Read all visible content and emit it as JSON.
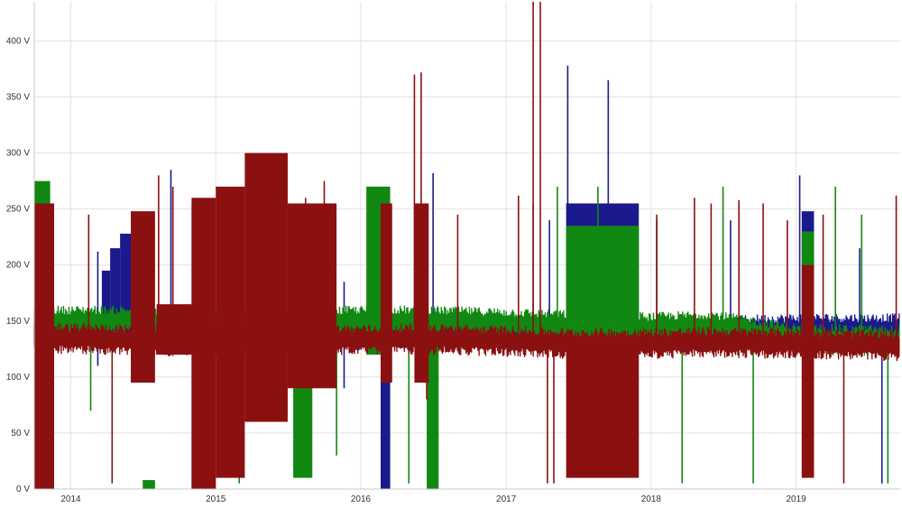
{
  "chart_data": {
    "type": "line",
    "title": "",
    "xlabel": "",
    "ylabel": "",
    "y_unit": "V",
    "ylim": [
      0,
      435
    ],
    "xlim": [
      "2013-10-01",
      "2019-09-20"
    ],
    "grid": true,
    "legend": "none",
    "y_ticks": [
      "0 V",
      "50 V",
      "100 V",
      "150 V",
      "200 V",
      "250 V",
      "300 V",
      "350 V",
      "400 V"
    ],
    "x_ticks": [
      {
        "date": "2014-01-01",
        "label": "2014"
      },
      {
        "date": "2015-01-01",
        "label": "2015"
      },
      {
        "date": "2016-01-01",
        "label": "2016"
      },
      {
        "date": "2017-01-01",
        "label": "2017"
      },
      {
        "date": "2018-01-01",
        "label": "2018"
      },
      {
        "date": "2019-01-01",
        "label": "2019"
      }
    ],
    "series": [
      {
        "color": "#1a1a8c",
        "baseline": [
          [
            "2013-10-01",
            140
          ],
          [
            "2014-02-01",
            140
          ],
          [
            "2014-05-15",
            140
          ],
          [
            "2014-07-01",
            141
          ],
          [
            "2015-01-01",
            140
          ],
          [
            "2015-07-01",
            138
          ],
          [
            "2016-01-01",
            138
          ],
          [
            "2016-06-01",
            140
          ],
          [
            "2017-01-01",
            138
          ],
          [
            "2017-06-01",
            137
          ],
          [
            "2018-01-01",
            135
          ],
          [
            "2018-06-01",
            136
          ],
          [
            "2018-09-01",
            142
          ],
          [
            "2019-01-01",
            143
          ],
          [
            "2019-09-20",
            143
          ]
        ],
        "bands": [
          {
            "start": "2013-10-01",
            "end": "2013-11-01",
            "low": 0,
            "high": 270
          },
          {
            "start": "2014-03-20",
            "end": "2014-04-10",
            "low": 150,
            "high": 195
          },
          {
            "start": "2014-04-10",
            "end": "2014-05-05",
            "low": 155,
            "high": 215
          },
          {
            "start": "2014-05-05",
            "end": "2014-06-01",
            "low": 150,
            "high": 228
          },
          {
            "start": "2016-02-20",
            "end": "2016-03-15",
            "low": 0,
            "high": 125
          },
          {
            "start": "2017-06-01",
            "end": "2017-12-01",
            "low": 130,
            "high": 255
          },
          {
            "start": "2019-01-15",
            "end": "2019-02-15",
            "low": 200,
            "high": 248
          }
        ],
        "spikes": [
          [
            "2014-03-10",
            212,
            110
          ],
          [
            "2014-09-10",
            285,
            145
          ],
          [
            "2015-08-01",
            80,
            170
          ],
          [
            "2015-11-20",
            90,
            185
          ],
          [
            "2016-07-01",
            282,
            120
          ],
          [
            "2017-04-20",
            240,
            140
          ],
          [
            "2017-06-05",
            378,
            130
          ],
          [
            "2017-09-15",
            365,
            130
          ],
          [
            "2018-07-20",
            240,
            135
          ],
          [
            "2019-01-10",
            280,
            140
          ],
          [
            "2019-06-10",
            215,
            125
          ],
          [
            "2019-08-05",
            140,
            5
          ]
        ]
      },
      {
        "color": "#118811",
        "baseline": [
          [
            "2013-10-01",
            150
          ],
          [
            "2014-06-01",
            150
          ],
          [
            "2015-01-01",
            147
          ],
          [
            "2015-07-01",
            148
          ],
          [
            "2016-01-01",
            150
          ],
          [
            "2016-06-01",
            150
          ],
          [
            "2017-01-01",
            148
          ],
          [
            "2017-06-01",
            146
          ],
          [
            "2018-01-01",
            144
          ],
          [
            "2018-06-01",
            146
          ],
          [
            "2019-01-01",
            134
          ],
          [
            "2019-09-20",
            132
          ]
        ],
        "bands": [
          {
            "start": "2013-10-01",
            "end": "2013-11-10",
            "low": 60,
            "high": 275
          },
          {
            "start": "2014-07-01",
            "end": "2014-08-01",
            "low": 0,
            "high": 8
          },
          {
            "start": "2014-11-01",
            "end": "2014-12-15",
            "low": 0,
            "high": 255
          },
          {
            "start": "2015-07-15",
            "end": "2015-09-01",
            "low": 10,
            "high": 150
          },
          {
            "start": "2016-01-15",
            "end": "2016-03-15",
            "low": 120,
            "high": 270
          },
          {
            "start": "2016-06-15",
            "end": "2016-07-15",
            "low": 0,
            "high": 150
          },
          {
            "start": "2017-06-01",
            "end": "2017-12-01",
            "low": 130,
            "high": 235
          },
          {
            "start": "2019-01-15",
            "end": "2019-02-15",
            "low": 130,
            "high": 230
          }
        ],
        "spikes": [
          [
            "2014-02-20",
            70,
            150
          ],
          [
            "2015-03-01",
            5,
            150
          ],
          [
            "2015-11-01",
            30,
            160
          ],
          [
            "2016-05-01",
            5,
            150
          ],
          [
            "2017-03-10",
            255,
            150
          ],
          [
            "2017-05-10",
            270,
            150
          ],
          [
            "2017-08-20",
            270,
            150
          ],
          [
            "2018-01-15",
            240,
            140
          ],
          [
            "2018-03-20",
            5,
            140
          ],
          [
            "2018-07-01",
            270,
            140
          ],
          [
            "2018-09-15",
            5,
            140
          ],
          [
            "2019-04-10",
            270,
            130
          ],
          [
            "2019-06-15",
            245,
            130
          ],
          [
            "2019-08-20",
            5,
            130
          ]
        ]
      },
      {
        "color": "#8b1010",
        "baseline": [
          [
            "2013-10-01",
            135
          ],
          [
            "2014-06-01",
            133
          ],
          [
            "2015-01-01",
            132
          ],
          [
            "2015-07-01",
            134
          ],
          [
            "2016-01-01",
            133
          ],
          [
            "2016-06-01",
            134
          ],
          [
            "2017-01-01",
            132
          ],
          [
            "2017-06-01",
            130
          ],
          [
            "2018-01-01",
            130
          ],
          [
            "2018-06-01",
            131
          ],
          [
            "2019-01-01",
            130
          ],
          [
            "2019-09-20",
            128
          ]
        ],
        "bands": [
          {
            "start": "2013-10-01",
            "end": "2013-11-20",
            "low": 0,
            "high": 255
          },
          {
            "start": "2014-06-01",
            "end": "2014-08-01",
            "low": 95,
            "high": 248
          },
          {
            "start": "2014-08-05",
            "end": "2014-12-30",
            "low": 120,
            "high": 165
          },
          {
            "start": "2014-11-01",
            "end": "2015-01-01",
            "low": 0,
            "high": 260
          },
          {
            "start": "2015-01-01",
            "end": "2015-03-15",
            "low": 10,
            "high": 270
          },
          {
            "start": "2015-03-15",
            "end": "2015-07-01",
            "low": 60,
            "high": 300
          },
          {
            "start": "2015-07-01",
            "end": "2015-11-01",
            "low": 90,
            "high": 255
          },
          {
            "start": "2016-02-20",
            "end": "2016-03-20",
            "low": 95,
            "high": 255
          },
          {
            "start": "2016-05-15",
            "end": "2016-06-20",
            "low": 95,
            "high": 255
          },
          {
            "start": "2017-06-01",
            "end": "2017-12-01",
            "low": 10,
            "high": 135
          },
          {
            "start": "2019-01-15",
            "end": "2019-02-15",
            "low": 10,
            "high": 200
          }
        ],
        "spikes": [
          [
            "2014-02-15",
            245,
            140
          ],
          [
            "2014-04-15",
            5,
            140
          ],
          [
            "2014-08-10",
            280,
            140
          ],
          [
            "2014-09-15",
            270,
            140
          ],
          [
            "2015-04-10",
            290,
            140
          ],
          [
            "2015-06-25",
            300,
            140
          ],
          [
            "2015-08-15",
            260,
            140
          ],
          [
            "2015-10-01",
            275,
            140
          ],
          [
            "2016-05-15",
            370,
            140
          ],
          [
            "2016-06-01",
            372,
            140
          ],
          [
            "2016-06-15",
            80,
            140
          ],
          [
            "2016-09-01",
            245,
            140
          ],
          [
            "2017-02-01",
            262,
            140
          ],
          [
            "2017-03-10",
            435,
            140
          ],
          [
            "2017-03-28",
            435,
            140
          ],
          [
            "2017-04-15",
            5,
            140
          ],
          [
            "2017-05-01",
            5,
            140
          ],
          [
            "2018-01-15",
            245,
            130
          ],
          [
            "2018-04-20",
            260,
            130
          ],
          [
            "2018-06-01",
            255,
            130
          ],
          [
            "2018-08-10",
            258,
            130
          ],
          [
            "2018-10-10",
            255,
            130
          ],
          [
            "2018-12-10",
            240,
            130
          ],
          [
            "2019-03-10",
            245,
            130
          ],
          [
            "2019-05-01",
            5,
            130
          ],
          [
            "2019-09-10",
            262,
            130
          ]
        ]
      }
    ]
  }
}
